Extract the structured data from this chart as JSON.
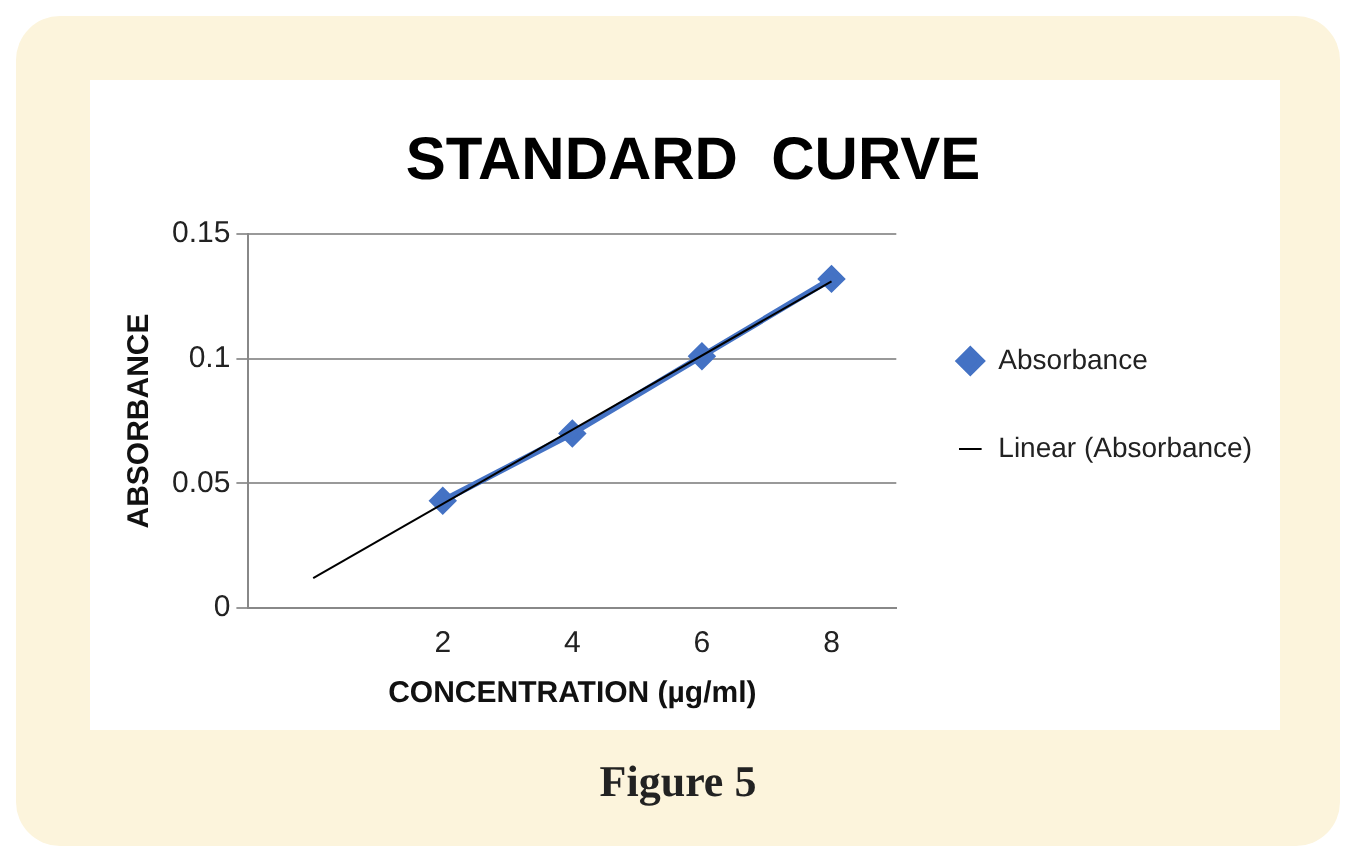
{
  "chart_data": {
    "type": "line",
    "title": "STANDARD  CURVE",
    "xlabel": "CONCENTRATION (µg/ml)",
    "ylabel": "ABSORBANCE",
    "xlim": [
      -1,
      9
    ],
    "xticks": [
      2,
      4,
      6,
      8
    ],
    "ylim": [
      0,
      0.15
    ],
    "yticks": [
      0,
      0.05,
      0.1,
      0.15
    ],
    "grid": "y",
    "legend": "right",
    "series": [
      {
        "name": "Absorbance",
        "color": "#4472c4",
        "x": [
          2,
          4,
          6,
          8
        ],
        "values": [
          0.043,
          0.07,
          0.101,
          0.132
        ],
        "marker": "diamond",
        "line_style": "solid"
      },
      {
        "name": "Linear (Absorbance)",
        "color": "#000000",
        "x": [
          0,
          8
        ],
        "values": [
          0.012,
          0.131
        ],
        "marker": "none",
        "line_style": "solid"
      }
    ],
    "annotations": [
      "Figure 5"
    ]
  }
}
